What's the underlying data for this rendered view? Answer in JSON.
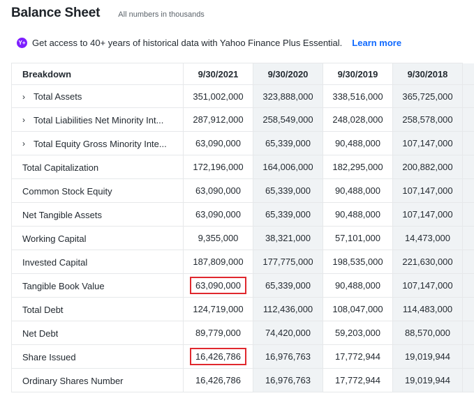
{
  "header": {
    "title": "Balance Sheet",
    "subtitle": "All numbers in thousands"
  },
  "promo": {
    "icon": "yahoo-plus-icon",
    "icon_text": "Y+",
    "text": "Get access to 40+ years of historical data with Yahoo Finance Plus Essential.",
    "link": "Learn more"
  },
  "table": {
    "columns": [
      "Breakdown",
      "9/30/2021",
      "9/30/2020",
      "9/30/2019",
      "9/30/2018"
    ],
    "rows": [
      {
        "label": "Total Assets",
        "expandable": true,
        "values": [
          "351,002,000",
          "323,888,000",
          "338,516,000",
          "365,725,000"
        ]
      },
      {
        "label": "Total Liabilities Net Minority Int...",
        "expandable": true,
        "values": [
          "287,912,000",
          "258,549,000",
          "248,028,000",
          "258,578,000"
        ]
      },
      {
        "label": "Total Equity Gross Minority Inte...",
        "expandable": true,
        "values": [
          "63,090,000",
          "65,339,000",
          "90,488,000",
          "107,147,000"
        ]
      },
      {
        "label": "Total Capitalization",
        "expandable": false,
        "values": [
          "172,196,000",
          "164,006,000",
          "182,295,000",
          "200,882,000"
        ]
      },
      {
        "label": "Common Stock Equity",
        "expandable": false,
        "values": [
          "63,090,000",
          "65,339,000",
          "90,488,000",
          "107,147,000"
        ]
      },
      {
        "label": "Net Tangible Assets",
        "expandable": false,
        "values": [
          "63,090,000",
          "65,339,000",
          "90,488,000",
          "107,147,000"
        ]
      },
      {
        "label": "Working Capital",
        "expandable": false,
        "values": [
          "9,355,000",
          "38,321,000",
          "57,101,000",
          "14,473,000"
        ]
      },
      {
        "label": "Invested Capital",
        "expandable": false,
        "values": [
          "187,809,000",
          "177,775,000",
          "198,535,000",
          "221,630,000"
        ]
      },
      {
        "label": "Tangible Book Value",
        "expandable": false,
        "values": [
          "63,090,000",
          "65,339,000",
          "90,488,000",
          "107,147,000"
        ],
        "highlight": [
          0
        ]
      },
      {
        "label": "Total Debt",
        "expandable": false,
        "values": [
          "124,719,000",
          "112,436,000",
          "108,047,000",
          "114,483,000"
        ]
      },
      {
        "label": "Net Debt",
        "expandable": false,
        "values": [
          "89,779,000",
          "74,420,000",
          "59,203,000",
          "88,570,000"
        ]
      },
      {
        "label": "Share Issued",
        "expandable": false,
        "values": [
          "16,426,786",
          "16,976,763",
          "17,772,944",
          "19,019,944"
        ],
        "highlight": [
          0
        ]
      },
      {
        "label": "Ordinary Shares Number",
        "expandable": false,
        "values": [
          "16,426,786",
          "16,976,763",
          "17,772,944",
          "19,019,944"
        ]
      }
    ]
  },
  "colors": {
    "accent_link": "#0f69ff",
    "plus_badge": "#7e1fff",
    "highlight_box": "#e0282e",
    "shaded_column": "#f0f3f5"
  }
}
